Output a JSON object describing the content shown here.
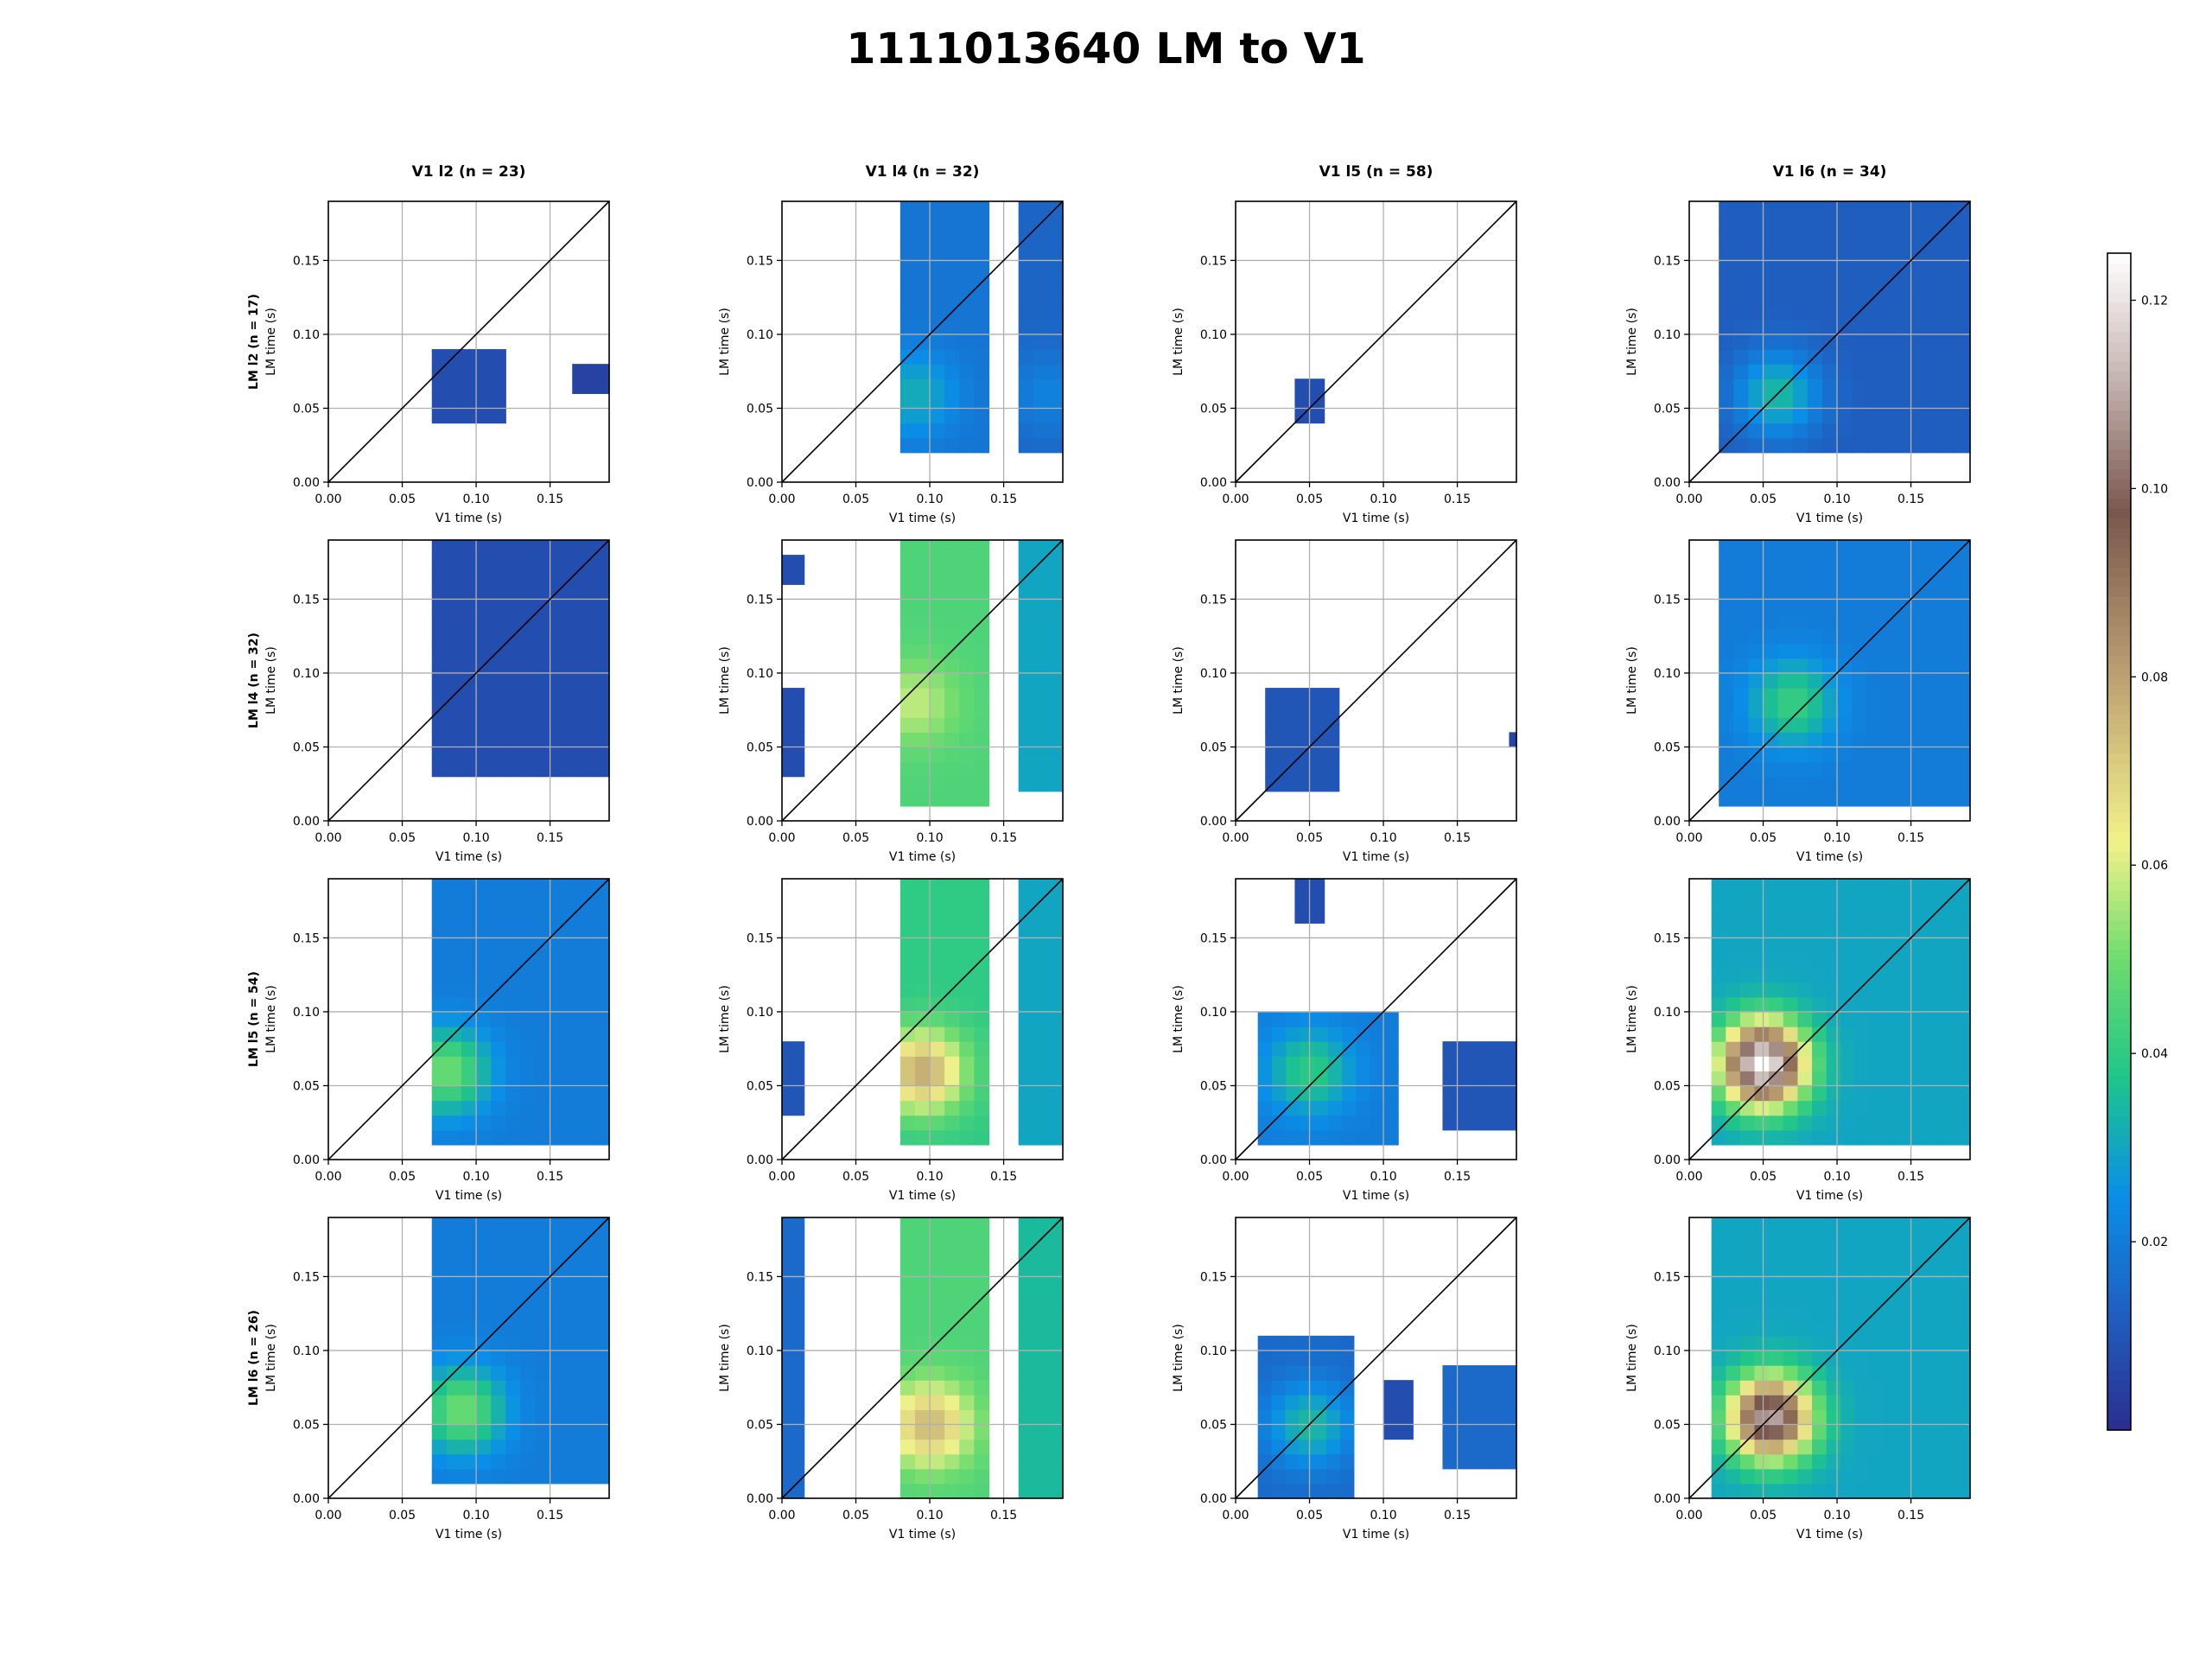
{
  "figure_title": "1111013640 LM to V1",
  "colors": {
    "axis": "#000000",
    "grid": "#b0b0b0",
    "diagonal": "#000000",
    "background": "#ffffff"
  },
  "colormap": {
    "name": "terrain_r",
    "stops": [
      [
        0.0,
        "#2b2e8e"
      ],
      [
        0.1,
        "#1f5fc0"
      ],
      [
        0.2,
        "#0a8fe8"
      ],
      [
        0.3,
        "#1fc58a"
      ],
      [
        0.4,
        "#6edc6e"
      ],
      [
        0.5,
        "#f2f28a"
      ],
      [
        0.65,
        "#b89b70"
      ],
      [
        0.78,
        "#7a574e"
      ],
      [
        0.9,
        "#c9b9b6"
      ],
      [
        1.0,
        "#ffffff"
      ]
    ]
  },
  "chart_data": {
    "type": "heatmap",
    "layout": "4x4 grid",
    "title": "1111013640 LM to V1",
    "column_titles": [
      "V1 l2 (n = 23)",
      "V1 l4 (n = 32)",
      "V1 l5 (n = 58)",
      "V1 l6 (n = 34)"
    ],
    "row_titles": [
      "LM l2 (n = 17)",
      "LM l4 (n = 32)",
      "LM l5 (n = 54)",
      "LM l6 (n = 26)"
    ],
    "xlabel": "V1 time (s)",
    "ylabel": "LM time (s)",
    "xlim": [
      0,
      0.19
    ],
    "ylim": [
      0,
      0.19
    ],
    "xticks": [
      "0.00",
      "0.05",
      "0.10",
      "0.15"
    ],
    "yticks": [
      "0.00",
      "0.05",
      "0.10",
      "0.15"
    ],
    "grid": true,
    "diagonal_line": true,
    "colorbar": {
      "range": [
        0.0,
        0.125
      ],
      "ticks": [
        "0.02",
        "0.04",
        "0.06",
        "0.08",
        "0.10",
        "0.12"
      ],
      "colormap": "terrain_r"
    },
    "cell_size_s": 0.01,
    "panels": [
      {
        "row": 0,
        "col": 0,
        "blobs": [
          {
            "x": [
              0.07,
              0.12
            ],
            "y": [
              0.04,
              0.09
            ],
            "value": 0.008
          },
          {
            "x": [
              0.165,
              0.19
            ],
            "y": [
              0.06,
              0.08
            ],
            "value": 0.005
          }
        ]
      },
      {
        "row": 0,
        "col": 1,
        "blobs": [
          {
            "x": [
              0.08,
              0.14
            ],
            "y": [
              0.02,
              0.19
            ],
            "value": 0.018,
            "peak": [
              0.09,
              0.06
            ],
            "peak_value": 0.032
          },
          {
            "x": [
              0.16,
              0.19
            ],
            "y": [
              0.02,
              0.19
            ],
            "value": 0.014,
            "peak": [
              0.18,
              0.06
            ],
            "peak_value": 0.022
          }
        ]
      },
      {
        "row": 0,
        "col": 2,
        "blobs": [
          {
            "x": [
              0.04,
              0.06
            ],
            "y": [
              0.04,
              0.07
            ],
            "value": 0.008
          }
        ]
      },
      {
        "row": 0,
        "col": 3,
        "blobs": [
          {
            "x": [
              0.02,
              0.19
            ],
            "y": [
              0.02,
              0.19
            ],
            "value": 0.012,
            "peak": [
              0.06,
              0.06
            ],
            "peak_value": 0.035
          }
        ]
      },
      {
        "row": 1,
        "col": 0,
        "blobs": [
          {
            "x": [
              0.07,
              0.19
            ],
            "y": [
              0.03,
              0.19
            ],
            "value": 0.008
          }
        ]
      },
      {
        "row": 1,
        "col": 1,
        "blobs": [
          {
            "x": [
              0.0,
              0.015
            ],
            "y": [
              0.16,
              0.18
            ],
            "value": 0.008
          },
          {
            "x": [
              0.0,
              0.015
            ],
            "y": [
              0.03,
              0.09
            ],
            "value": 0.008
          },
          {
            "x": [
              0.08,
              0.14
            ],
            "y": [
              0.01,
              0.19
            ],
            "value": 0.045,
            "peak": [
              0.09,
              0.08
            ],
            "peak_value": 0.058
          },
          {
            "x": [
              0.16,
              0.19
            ],
            "y": [
              0.02,
              0.19
            ],
            "value": 0.03
          }
        ]
      },
      {
        "row": 1,
        "col": 2,
        "blobs": [
          {
            "x": [
              0.02,
              0.07
            ],
            "y": [
              0.02,
              0.09
            ],
            "value": 0.01
          },
          {
            "x": [
              0.185,
              0.19
            ],
            "y": [
              0.05,
              0.06
            ],
            "value": 0.006
          }
        ]
      },
      {
        "row": 1,
        "col": 3,
        "blobs": [
          {
            "x": [
              0.02,
              0.19
            ],
            "y": [
              0.01,
              0.19
            ],
            "value": 0.02,
            "peak": [
              0.07,
              0.08
            ],
            "peak_value": 0.042
          }
        ]
      },
      {
        "row": 2,
        "col": 0,
        "blobs": [
          {
            "x": [
              0.07,
              0.19
            ],
            "y": [
              0.01,
              0.19
            ],
            "value": 0.02,
            "peak": [
              0.08,
              0.06
            ],
            "peak_value": 0.05
          }
        ]
      },
      {
        "row": 2,
        "col": 1,
        "blobs": [
          {
            "x": [
              0.0,
              0.015
            ],
            "y": [
              0.03,
              0.08
            ],
            "value": 0.01
          },
          {
            "x": [
              0.08,
              0.14
            ],
            "y": [
              0.01,
              0.19
            ],
            "value": 0.04,
            "peak": [
              0.095,
              0.06
            ],
            "peak_value": 0.078
          },
          {
            "x": [
              0.16,
              0.19
            ],
            "y": [
              0.01,
              0.19
            ],
            "value": 0.03
          }
        ]
      },
      {
        "row": 2,
        "col": 2,
        "blobs": [
          {
            "x": [
              0.04,
              0.06
            ],
            "y": [
              0.16,
              0.19
            ],
            "value": 0.008
          },
          {
            "x": [
              0.015,
              0.11
            ],
            "y": [
              0.01,
              0.1
            ],
            "value": 0.02,
            "peak": [
              0.05,
              0.06
            ],
            "peak_value": 0.04
          },
          {
            "x": [
              0.14,
              0.19
            ],
            "y": [
              0.02,
              0.08
            ],
            "value": 0.01
          }
        ]
      },
      {
        "row": 2,
        "col": 3,
        "blobs": [
          {
            "x": [
              0.015,
              0.19
            ],
            "y": [
              0.01,
              0.19
            ],
            "value": 0.03,
            "peak": [
              0.05,
              0.065
            ],
            "peak_value": 0.125
          }
        ]
      },
      {
        "row": 3,
        "col": 0,
        "blobs": [
          {
            "x": [
              0.07,
              0.19
            ],
            "y": [
              0.01,
              0.19
            ],
            "value": 0.02,
            "peak": [
              0.09,
              0.06
            ],
            "peak_value": 0.05
          }
        ]
      },
      {
        "row": 3,
        "col": 1,
        "blobs": [
          {
            "x": [
              0.0,
              0.015
            ],
            "y": [
              0.0,
              0.19
            ],
            "value": 0.015
          },
          {
            "x": [
              0.08,
              0.14
            ],
            "y": [
              0.0,
              0.19
            ],
            "value": 0.045,
            "peak": [
              0.1,
              0.05
            ],
            "peak_value": 0.075
          },
          {
            "x": [
              0.16,
              0.19
            ],
            "y": [
              0.0,
              0.19
            ],
            "value": 0.035
          }
        ]
      },
      {
        "row": 3,
        "col": 2,
        "blobs": [
          {
            "x": [
              0.015,
              0.08
            ],
            "y": [
              0.0,
              0.11
            ],
            "value": 0.015,
            "peak": [
              0.05,
              0.05
            ],
            "peak_value": 0.035
          },
          {
            "x": [
              0.1,
              0.12
            ],
            "y": [
              0.04,
              0.08
            ],
            "value": 0.008
          },
          {
            "x": [
              0.14,
              0.19
            ],
            "y": [
              0.02,
              0.09
            ],
            "value": 0.015
          }
        ]
      },
      {
        "row": 3,
        "col": 3,
        "blobs": [
          {
            "x": [
              0.015,
              0.19
            ],
            "y": [
              0.0,
              0.19
            ],
            "value": 0.03,
            "peak": [
              0.055,
              0.055
            ],
            "peak_value": 0.11
          }
        ]
      }
    ]
  }
}
